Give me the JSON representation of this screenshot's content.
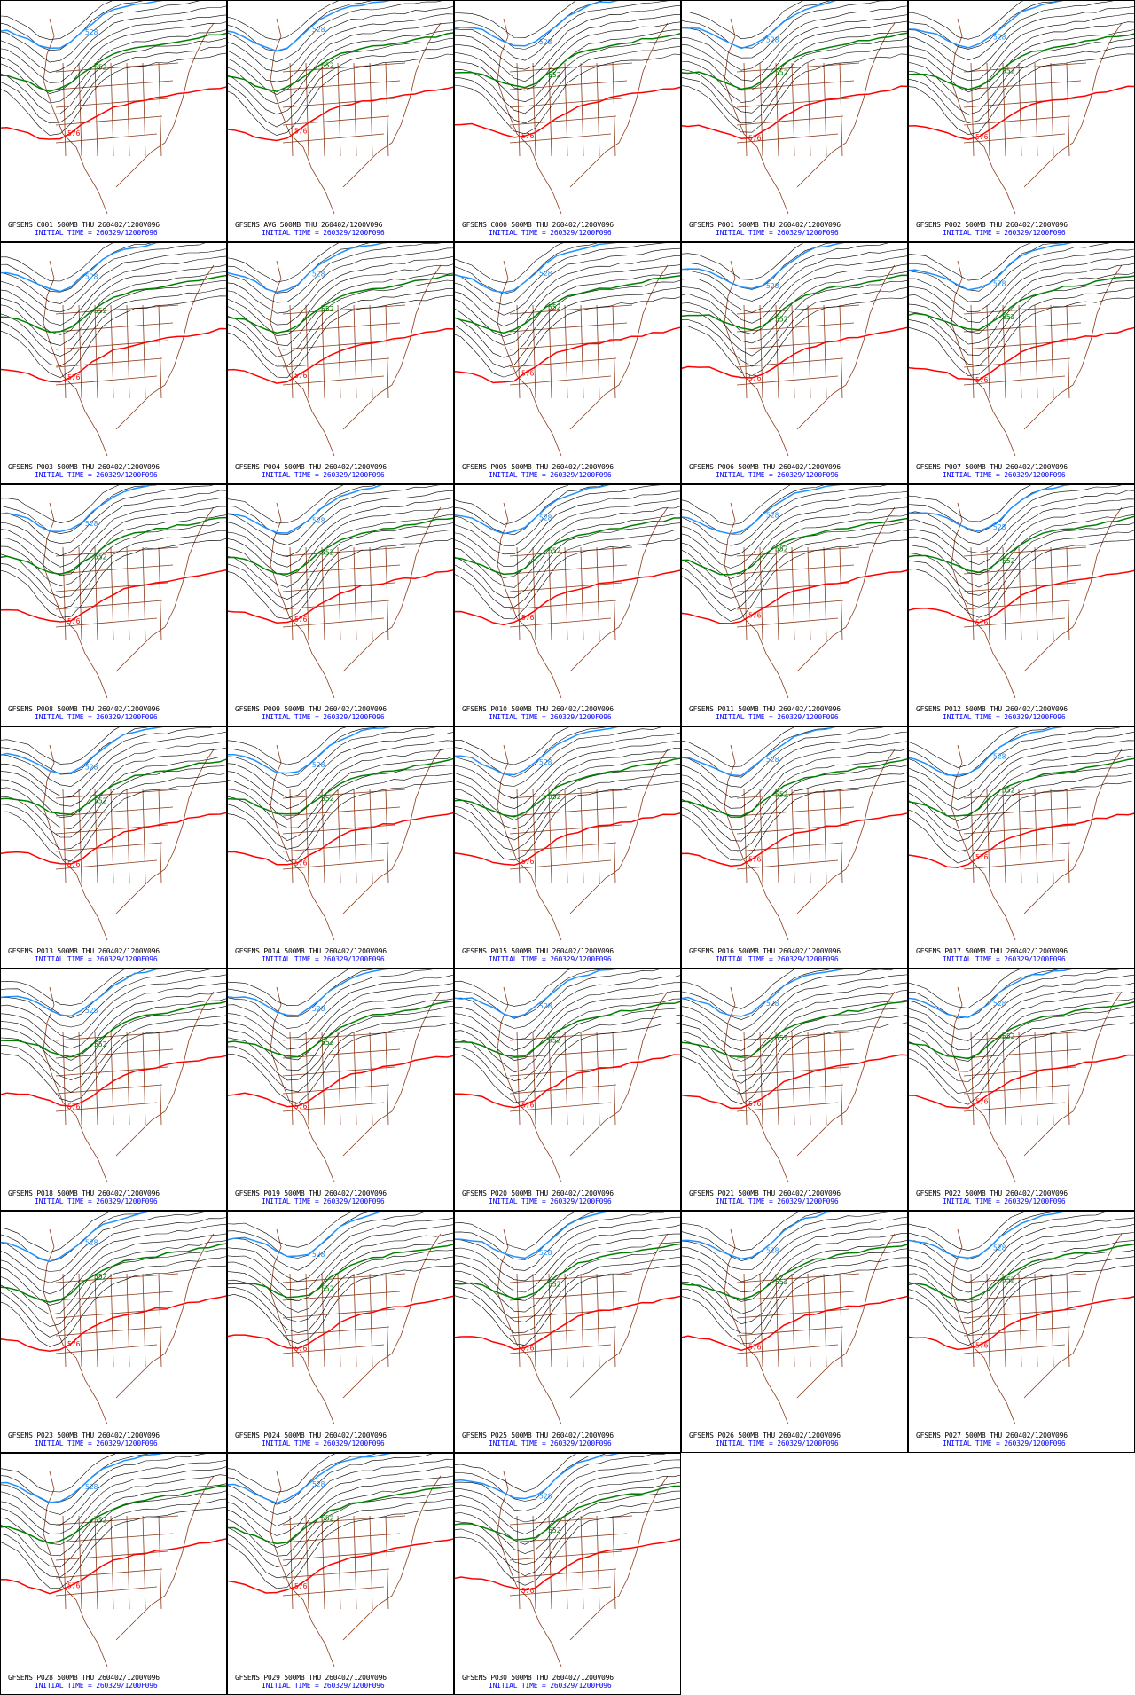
{
  "figure": {
    "colors": {
      "contour": "#000000",
      "geo": "#8b3a1a",
      "c528": "#1e90ff",
      "c552": "#008000",
      "c576": "#ff0000",
      "caption_model": "#000000",
      "caption_init": "#0000ff"
    },
    "contour_labels": {
      "low": "528",
      "mid": "552",
      "high": "576"
    },
    "panels": [
      {
        "title": "GFSENS C001 500MB THU 260402/1200V096",
        "init": "INITIAL TIME = 260329/1200F096"
      },
      {
        "title": "GFSENS AVG 500MB THU 260402/1200V096",
        "init": "INITIAL TIME = 260329/1200F096"
      },
      {
        "title": "GFSENS C000 500MB THU 260402/1200V096",
        "init": "INITIAL TIME = 260329/1200F096"
      },
      {
        "title": "GFSENS P001 500MB THU 260402/1200V096",
        "init": "INITIAL TIME = 260329/1200F096"
      },
      {
        "title": "GFSENS P002 500MB THU 260402/1200V096",
        "init": "INITIAL TIME = 260329/1200F096"
      },
      {
        "title": "GFSENS P003 500MB THU 260402/1200V096",
        "init": "INITIAL TIME = 260329/1200F096"
      },
      {
        "title": "GFSENS P004 500MB THU 260402/1200V096",
        "init": "INITIAL TIME = 260329/1200F096"
      },
      {
        "title": "GFSENS P005 500MB THU 260402/1200V096",
        "init": "INITIAL TIME = 260329/1200F096"
      },
      {
        "title": "GFSENS P006 500MB THU 260402/1200V096",
        "init": "INITIAL TIME = 260329/1200F096"
      },
      {
        "title": "GFSENS P007 500MB THU 260402/1200V096",
        "init": "INITIAL TIME = 260329/1200F096"
      },
      {
        "title": "GFSENS P008 500MB THU 260402/1200V096",
        "init": "INITIAL TIME = 260329/1200F096"
      },
      {
        "title": "GFSENS P009 500MB THU 260402/1200V096",
        "init": "INITIAL TIME = 260329/1200F096"
      },
      {
        "title": "GFSENS P010 500MB THU 260402/1200V096",
        "init": "INITIAL TIME = 260329/1200F096"
      },
      {
        "title": "GFSENS P011 500MB THU 260402/1200V096",
        "init": "INITIAL TIME = 260329/1200F096"
      },
      {
        "title": "GFSENS P012 500MB THU 260402/1200V096",
        "init": "INITIAL TIME = 260329/1200F096"
      },
      {
        "title": "GFSENS P013 500MB THU 260402/1200V096",
        "init": "INITIAL TIME = 260329/1200F096"
      },
      {
        "title": "GFSENS P014 500MB THU 260402/1200V096",
        "init": "INITIAL TIME = 260329/1200F096"
      },
      {
        "title": "GFSENS P015 500MB THU 260402/1200V096",
        "init": "INITIAL TIME = 260329/1200F096"
      },
      {
        "title": "GFSENS P016 500MB THU 260402/1200V096",
        "init": "INITIAL TIME = 260329/1200F096"
      },
      {
        "title": "GFSENS P017 500MB THU 260402/1200V096",
        "init": "INITIAL TIME = 260329/1200F096"
      },
      {
        "title": "GFSENS P018 500MB THU 260402/1200V096",
        "init": "INITIAL TIME = 260329/1200F096"
      },
      {
        "title": "GFSENS P019 500MB THU 260402/1200V096",
        "init": "INITIAL TIME = 260329/1200F096"
      },
      {
        "title": "GFSENS P020 500MB THU 260402/1200V096",
        "init": "INITIAL TIME = 260329/1200F096"
      },
      {
        "title": "GFSENS P021 500MB THU 260402/1200V096",
        "init": "INITIAL TIME = 260329/1200F096"
      },
      {
        "title": "GFSENS P022 500MB THU 260402/1200V096",
        "init": "INITIAL TIME = 260329/1200F096"
      },
      {
        "title": "GFSENS P023 500MB THU 260402/1200V096",
        "init": "INITIAL TIME = 260329/1200F096"
      },
      {
        "title": "GFSENS P024 500MB THU 260402/1200V096",
        "init": "INITIAL TIME = 260329/1200F096"
      },
      {
        "title": "GFSENS P025 500MB THU 260402/1200V096",
        "init": "INITIAL TIME = 260329/1200F096"
      },
      {
        "title": "GFSENS P026 500MB THU 260402/1200V096",
        "init": "INITIAL TIME = 260329/1200F096"
      },
      {
        "title": "GFSENS P027 500MB THU 260402/1200V096",
        "init": "INITIAL TIME = 260329/1200F096"
      },
      {
        "title": "GFSENS P028 500MB THU 260402/1200V096",
        "init": "INITIAL TIME = 260329/1200F096"
      },
      {
        "title": "GFSENS P029 500MB THU 260402/1200V096",
        "init": "INITIAL TIME = 260329/1200F096"
      },
      {
        "title": "GFSENS P030 500MB THU 260402/1200V096",
        "init": "INITIAL TIME = 260329/1200F096"
      }
    ]
  }
}
